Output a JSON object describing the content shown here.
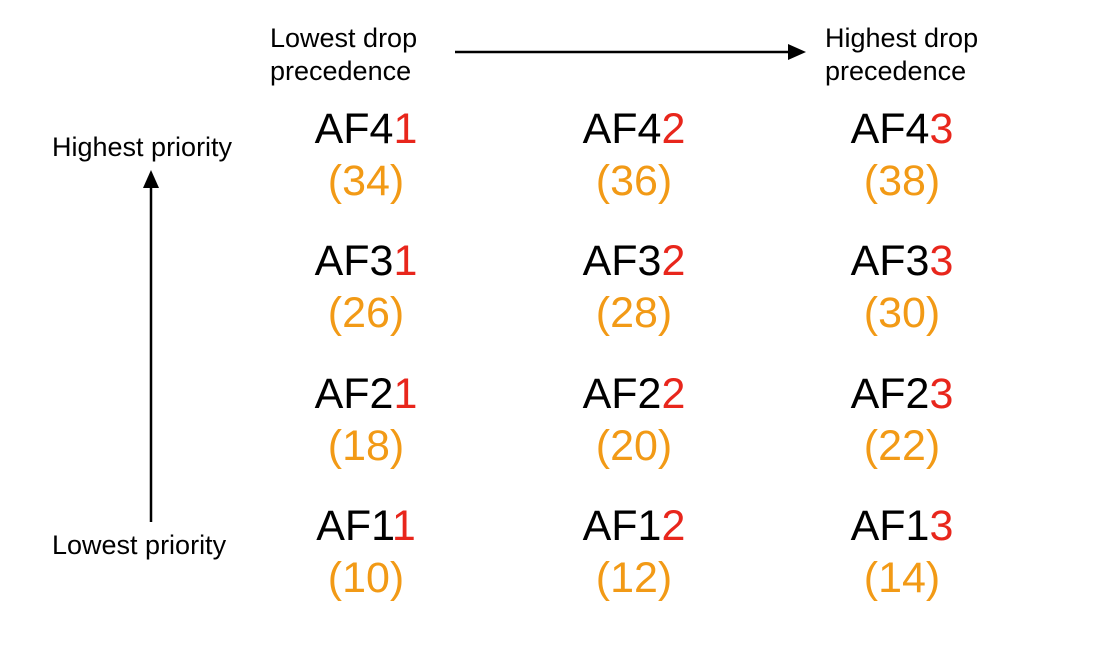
{
  "axis_labels": {
    "drop_low": [
      "Lowest drop",
      "precedence"
    ],
    "drop_high": [
      "Highest drop",
      "precedence"
    ],
    "priority_high": "Highest priority",
    "priority_low": "Lowest priority"
  },
  "colors": {
    "text": "#000000",
    "drop_level": "#e8261c",
    "dscp_value": "#f29a16"
  },
  "rows": [
    [
      {
        "prefix": "AF4",
        "level": "1",
        "dscp": "(34)"
      },
      {
        "prefix": "AF4",
        "level": "2",
        "dscp": "(36)"
      },
      {
        "prefix": "AF4",
        "level": "3",
        "dscp": "(38)"
      }
    ],
    [
      {
        "prefix": "AF3",
        "level": "1",
        "dscp": "(26)"
      },
      {
        "prefix": "AF3",
        "level": "2",
        "dscp": "(28)"
      },
      {
        "prefix": "AF3",
        "level": "3",
        "dscp": "(30)"
      }
    ],
    [
      {
        "prefix": "AF2",
        "level": "1",
        "dscp": "(18)"
      },
      {
        "prefix": "AF2",
        "level": "2",
        "dscp": "(20)"
      },
      {
        "prefix": "AF2",
        "level": "3",
        "dscp": "(22)"
      }
    ],
    [
      {
        "prefix": "AF1",
        "level": "1",
        "dscp": "(10)"
      },
      {
        "prefix": "AF1",
        "level": "2",
        "dscp": "(12)"
      },
      {
        "prefix": "AF1",
        "level": "3",
        "dscp": "(14)"
      }
    ]
  ]
}
